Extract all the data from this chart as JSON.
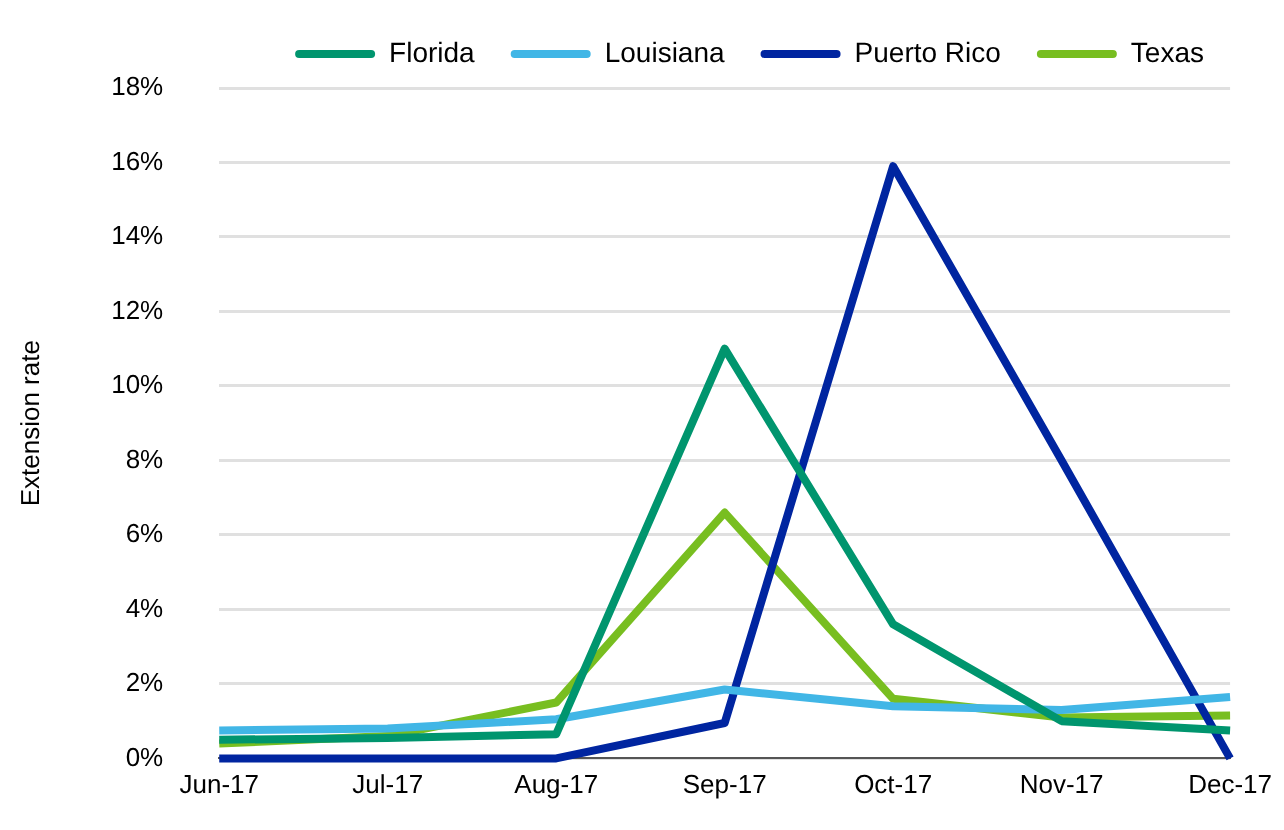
{
  "chart_data": {
    "type": "line",
    "ylabel": "Extension rate",
    "categories": [
      "Jun-17",
      "Jul-17",
      "Aug-17",
      "Sep-17",
      "Oct-17",
      "Nov-17",
      "Dec-17"
    ],
    "series": [
      {
        "name": "Florida",
        "color": "#00956e",
        "values": [
          0.5,
          0.55,
          0.65,
          11.0,
          3.6,
          1.0,
          0.75
        ]
      },
      {
        "name": "Louisiana",
        "color": "#41b6e6",
        "values": [
          0.75,
          0.8,
          1.05,
          1.85,
          1.4,
          1.3,
          1.65
        ]
      },
      {
        "name": "Puerto Rico",
        "color": "#0025a0",
        "values": [
          0,
          0,
          0,
          0.95,
          15.9,
          8.0,
          0
        ]
      },
      {
        "name": "Texas",
        "color": "#78be20",
        "values": [
          0.4,
          0.6,
          1.5,
          6.6,
          1.6,
          1.1,
          1.15
        ]
      }
    ],
    "ylim": [
      0,
      18
    ],
    "yticks": [
      {
        "value": 0,
        "label": "0%"
      },
      {
        "value": 2,
        "label": "2%"
      },
      {
        "value": 4,
        "label": "4%"
      },
      {
        "value": 6,
        "label": "6%"
      },
      {
        "value": 8,
        "label": "8%"
      },
      {
        "value": 10,
        "label": "10%"
      },
      {
        "value": 12,
        "label": "12%"
      },
      {
        "value": 14,
        "label": "14%"
      },
      {
        "value": 16,
        "label": "16%"
      },
      {
        "value": 18,
        "label": "18%"
      }
    ],
    "grid": "y",
    "legend": "top",
    "marker": "none",
    "line_style": "solid"
  }
}
